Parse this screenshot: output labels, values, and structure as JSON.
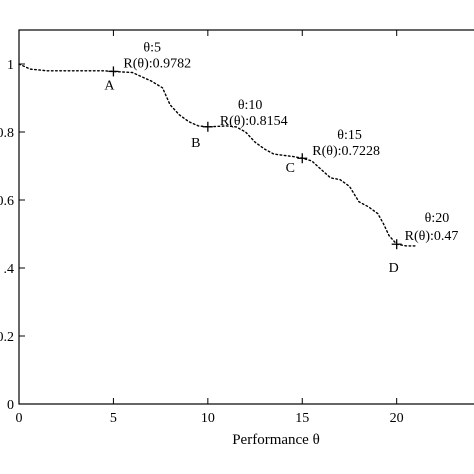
{
  "chart_data": {
    "type": "line",
    "title": "",
    "xlabel": "Performance θ",
    "ylabel": "",
    "xlim": [
      0,
      24.2
    ],
    "ylim": [
      0,
      1.1
    ],
    "grid": false,
    "x_ticks": [
      {
        "value": 0,
        "label": "0"
      },
      {
        "value": 5,
        "label": "5"
      },
      {
        "value": 10,
        "label": "10"
      },
      {
        "value": 15,
        "label": "15"
      },
      {
        "value": 20,
        "label": "20"
      }
    ],
    "y_ticks": [
      {
        "value": 0,
        "label": "0"
      },
      {
        "value": 0.2,
        "label": "0.2"
      },
      {
        "value": 0.4,
        "label": ".4"
      },
      {
        "value": 0.6,
        "label": "0.6"
      },
      {
        "value": 0.8,
        "label": "0.8"
      },
      {
        "value": 1.0,
        "label": "1"
      }
    ],
    "series": [
      {
        "style": "dotted",
        "color": "#000000",
        "points": [
          [
            0,
            1.0
          ],
          [
            0.6,
            0.985
          ],
          [
            1.5,
            0.98
          ],
          [
            3,
            0.98
          ],
          [
            4.5,
            0.98
          ],
          [
            5,
            0.978
          ],
          [
            6,
            0.975
          ],
          [
            7,
            0.95
          ],
          [
            7.6,
            0.93
          ],
          [
            8,
            0.88
          ],
          [
            8.5,
            0.85
          ],
          [
            9,
            0.83
          ],
          [
            9.5,
            0.818
          ],
          [
            10,
            0.815
          ],
          [
            11,
            0.818
          ],
          [
            11.5,
            0.815
          ],
          [
            12,
            0.8
          ],
          [
            12.5,
            0.77
          ],
          [
            13,
            0.75
          ],
          [
            13.5,
            0.735
          ],
          [
            14.5,
            0.728
          ],
          [
            15,
            0.723
          ],
          [
            15.5,
            0.715
          ],
          [
            16,
            0.69
          ],
          [
            16.5,
            0.665
          ],
          [
            17,
            0.66
          ],
          [
            17.5,
            0.64
          ],
          [
            18,
            0.595
          ],
          [
            18.5,
            0.58
          ],
          [
            19,
            0.56
          ],
          [
            19.3,
            0.53
          ],
          [
            19.6,
            0.495
          ],
          [
            20,
            0.47
          ],
          [
            20.5,
            0.465
          ],
          [
            21,
            0.465
          ]
        ]
      }
    ],
    "markers": [
      {
        "x": 5,
        "y": 0.9782,
        "point_label": "A",
        "theta_text": "θ:5",
        "r_text": "R(θ):0.9782"
      },
      {
        "x": 10,
        "y": 0.8154,
        "point_label": "B",
        "theta_text": "θ:10",
        "r_text": "R(θ):0.8154"
      },
      {
        "x": 15,
        "y": 0.7228,
        "point_label": "C",
        "theta_text": "θ:15",
        "r_text": "R(θ):0.7228"
      },
      {
        "x": 20,
        "y": 0.47,
        "point_label": "D",
        "theta_text": "θ:20",
        "r_text": "R(θ):0.47"
      }
    ]
  }
}
